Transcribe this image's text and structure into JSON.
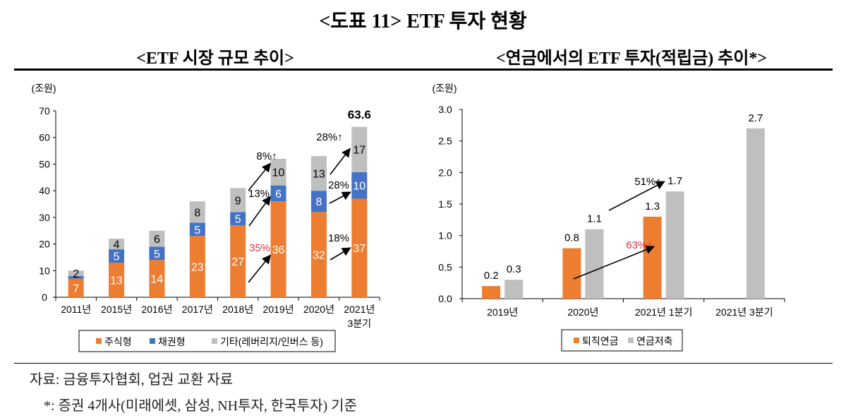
{
  "title": "<도표 11> ETF 투자 현황",
  "left_subtitle": "<ETF 시장 규모 추이>",
  "right_subtitle": "<연금에서의 ETF 투자(적립금) 추이*>",
  "notes": {
    "source": "자료: 금융투자협회, 업권 교환 자료",
    "footnote": "*: 증권 4개사(미래에셋, 삼성, NH투자, 한국투자) 기준"
  },
  "colors": {
    "orange": "#ED7D31",
    "blue": "#4472C4",
    "gray": "#BFBFBF"
  },
  "chart_data": [
    {
      "type": "bar",
      "stacked": true,
      "title": "<ETF 시장 규모 추이>",
      "unit_label": "(조원)",
      "categories": [
        "2011년",
        "2015년",
        "2016년",
        "2017년",
        "2018년",
        "2019년",
        "2020년",
        "2021년 3분기"
      ],
      "category_lines": [
        [
          "2011년"
        ],
        [
          "2015년"
        ],
        [
          "2016년"
        ],
        [
          "2017년"
        ],
        [
          "2018년"
        ],
        [
          "2019년"
        ],
        [
          "2020년"
        ],
        [
          "2021년",
          "3분기"
        ]
      ],
      "ylim": [
        0,
        70
      ],
      "yticks": [
        "0",
        "10",
        "20",
        "30",
        "40",
        "50",
        "60",
        "70"
      ],
      "legend_position": "bottom",
      "series": [
        {
          "name": "주식형",
          "color": "#ED7D31",
          "values": [
            7,
            13,
            14,
            23,
            27,
            36,
            32,
            37
          ],
          "labels": [
            "7",
            "13",
            "14",
            "23",
            "27",
            "36",
            "32",
            "37"
          ]
        },
        {
          "name": "채권형",
          "color": "#4472C4",
          "values": [
            1,
            5,
            5,
            5,
            5,
            6,
            8,
            10
          ],
          "labels": [
            "",
            "5",
            "5",
            "5",
            "5",
            "6",
            "8",
            "10"
          ]
        },
        {
          "name": "기타(레버리지/인버스  등)",
          "color": "#BFBFBF",
          "values": [
            2,
            4,
            6,
            8,
            9,
            10,
            13,
            17
          ],
          "labels": [
            "2",
            "4",
            "6",
            "8",
            "9",
            "10",
            "13",
            "17"
          ]
        }
      ],
      "total_label": "63.6",
      "annotations": [
        {
          "text": "8%↑",
          "color": "#000000"
        },
        {
          "text": "13%",
          "color": "#000000"
        },
        {
          "text": "35%",
          "color": "#E0304A"
        },
        {
          "text": "28%↑",
          "color": "#000000"
        },
        {
          "text": "28%",
          "color": "#000000"
        },
        {
          "text": "18%",
          "color": "#000000"
        }
      ]
    },
    {
      "type": "bar",
      "title": "<연금에서의 ETF 투자(적립금) 추이*>",
      "unit_label": "(조원)",
      "categories": [
        "2019년",
        "2020년",
        "2021년 1분기",
        "2021년 3분기"
      ],
      "ylim": [
        0,
        3.0
      ],
      "yticks": [
        "0.0",
        "0.5",
        "1.0",
        "1.5",
        "2.0",
        "2.5",
        "3.0"
      ],
      "legend_position": "bottom",
      "series": [
        {
          "name": "퇴직연금",
          "color": "#ED7D31",
          "values": [
            0.2,
            0.8,
            1.3,
            null
          ],
          "labels": [
            "0.2",
            "0.8",
            "1.3",
            ""
          ]
        },
        {
          "name": "연금저축",
          "color": "#BFBFBF",
          "values": [
            0.3,
            1.1,
            1.7,
            2.7
          ],
          "labels": [
            "0.3",
            "1.1",
            "1.7",
            "2.7"
          ]
        }
      ],
      "annotations": [
        {
          "text": "51%↑",
          "color": "#000000"
        },
        {
          "text": "63%↑",
          "color": "#E0304A"
        }
      ]
    }
  ]
}
